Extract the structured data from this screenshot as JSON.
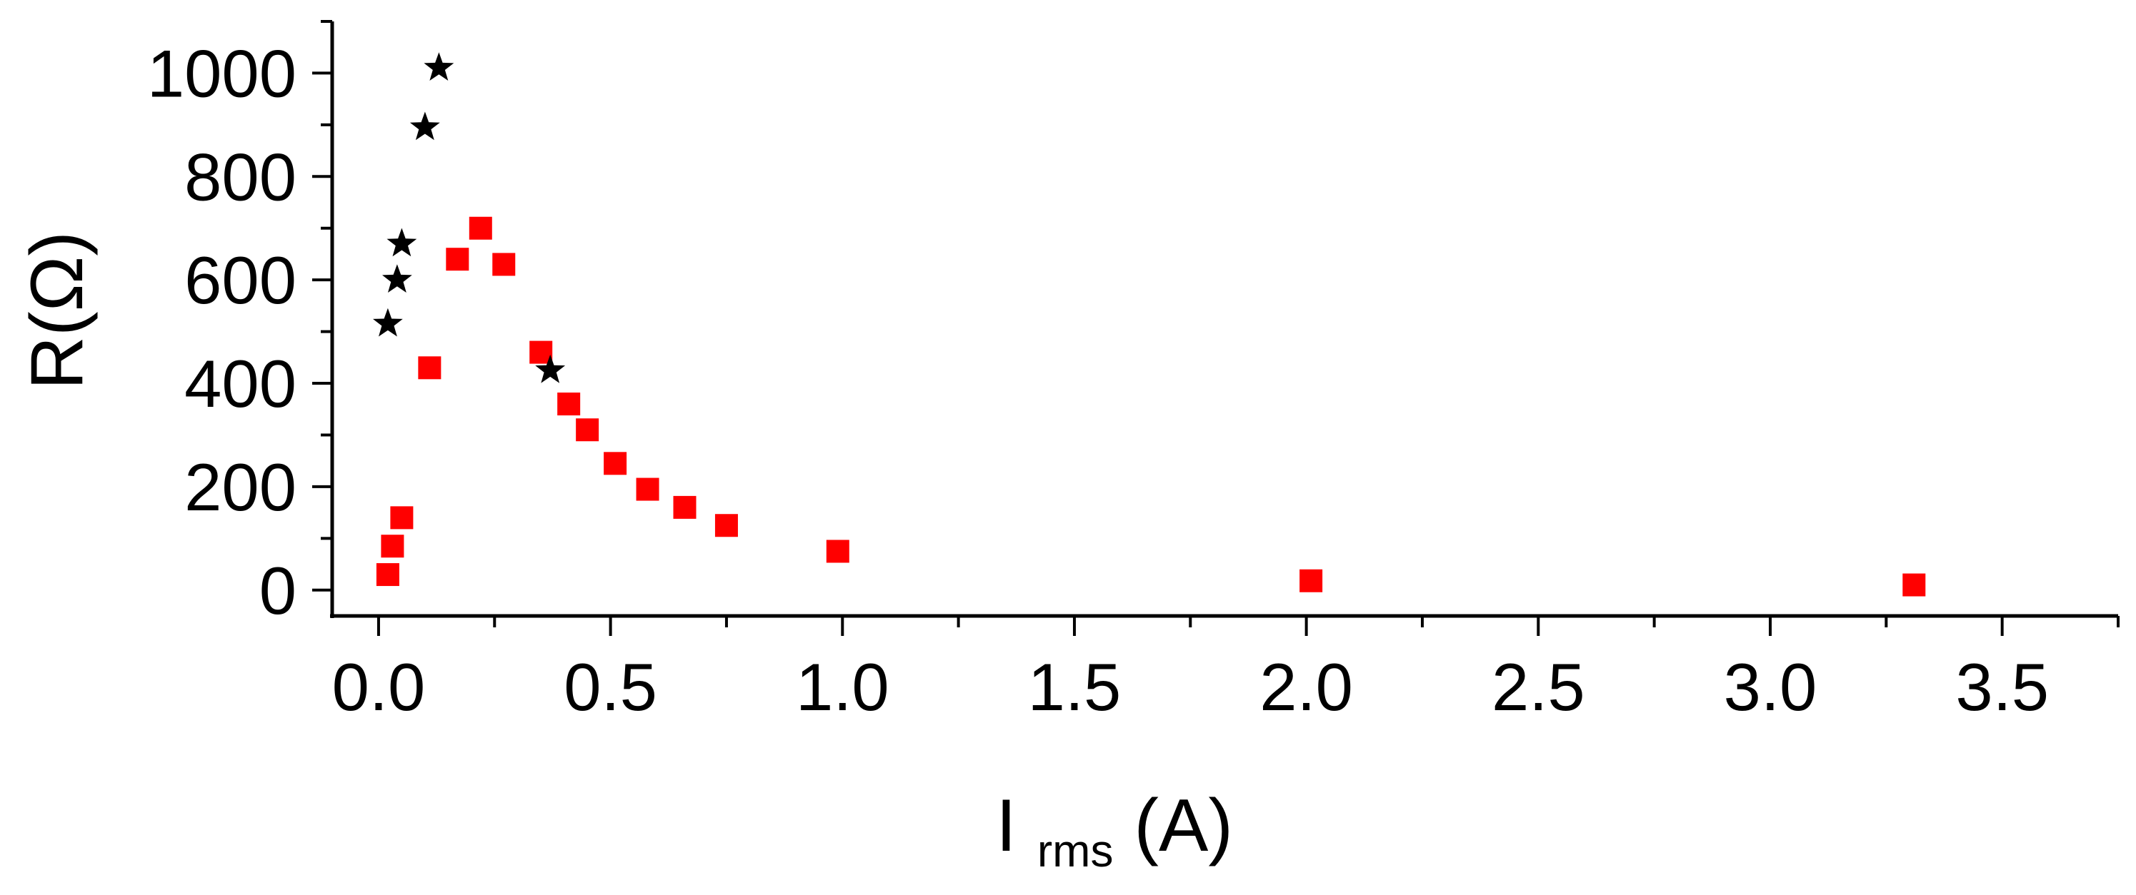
{
  "chart_data": {
    "type": "scatter",
    "xlabel": {
      "main": "I",
      "sub": "rms",
      "rest": "(A)"
    },
    "ylabel": "R(Ω)",
    "xlim": [
      -0.1,
      3.75
    ],
    "ylim": [
      -50,
      1100
    ],
    "x_ticks": [
      0.0,
      0.5,
      1.0,
      1.5,
      2.0,
      2.5,
      3.0,
      3.5
    ],
    "x_tick_labels": [
      "0.0",
      "0.5",
      "1.0",
      "1.5",
      "2.0",
      "2.5",
      "3.0",
      "3.5"
    ],
    "x_minor_ticks": [
      0.25,
      0.75,
      1.25,
      1.75,
      2.25,
      2.75,
      3.25,
      3.75
    ],
    "y_ticks": [
      0,
      200,
      400,
      600,
      800,
      1000
    ],
    "y_tick_labels": [
      "0",
      "200",
      "400",
      "600",
      "800",
      "1000"
    ],
    "y_minor_ticks": [
      100,
      300,
      500,
      700,
      900,
      1100
    ],
    "grid": false,
    "series": [
      {
        "marker": "square",
        "color": "#ff0000",
        "points": [
          [
            0.02,
            30
          ],
          [
            0.03,
            85
          ],
          [
            0.05,
            140
          ],
          [
            0.11,
            430
          ],
          [
            0.17,
            640
          ],
          [
            0.22,
            700
          ],
          [
            0.27,
            630
          ],
          [
            0.35,
            460
          ],
          [
            0.41,
            360
          ],
          [
            0.45,
            310
          ],
          [
            0.51,
            245
          ],
          [
            0.58,
            195
          ],
          [
            0.66,
            160
          ],
          [
            0.75,
            125
          ],
          [
            0.99,
            75
          ],
          [
            2.01,
            18
          ],
          [
            3.31,
            10
          ]
        ]
      },
      {
        "marker": "star",
        "color": "#000000",
        "points": [
          [
            0.02,
            515
          ],
          [
            0.04,
            600
          ],
          [
            0.05,
            670
          ],
          [
            0.1,
            895
          ],
          [
            0.13,
            1010
          ],
          [
            0.37,
            425
          ]
        ]
      }
    ]
  }
}
